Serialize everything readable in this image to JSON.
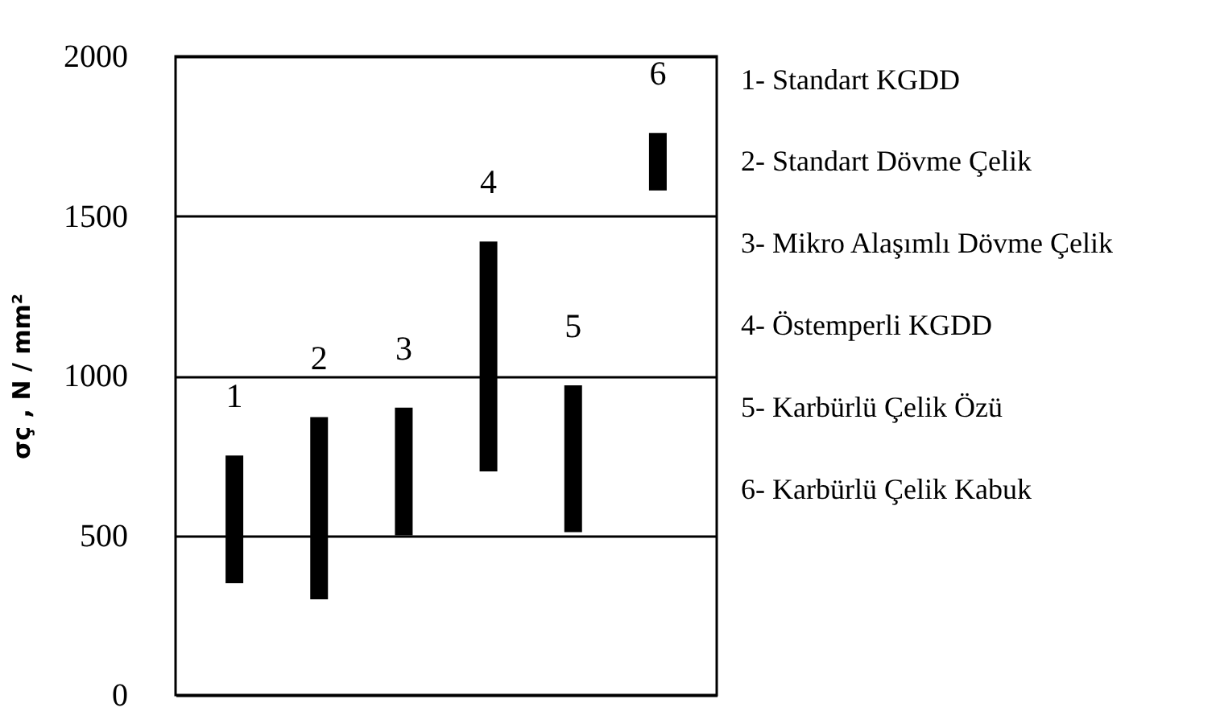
{
  "chart_data": {
    "type": "bar",
    "categories": [
      "1",
      "2",
      "3",
      "4",
      "5",
      "6"
    ],
    "base": [
      350,
      300,
      500,
      700,
      510,
      1580
    ],
    "values": [
      400,
      570,
      400,
      720,
      460,
      180
    ],
    "color": "#000000",
    "ylabel": "σç , N / mm²",
    "ylim": [
      0,
      2000
    ],
    "yticks": [
      0,
      500,
      1000,
      1500,
      2000
    ],
    "grid": "y",
    "annotations": [
      "1- Standart KGDD",
      "2- Standart Dövme Çelik",
      "3- Mikro Alaşımlı Dövme Çelik",
      "4- Östemperli KGDD",
      "5- Karbürlü Çelik Özü",
      "6- Karbürlü Çelik Kabuk"
    ]
  }
}
